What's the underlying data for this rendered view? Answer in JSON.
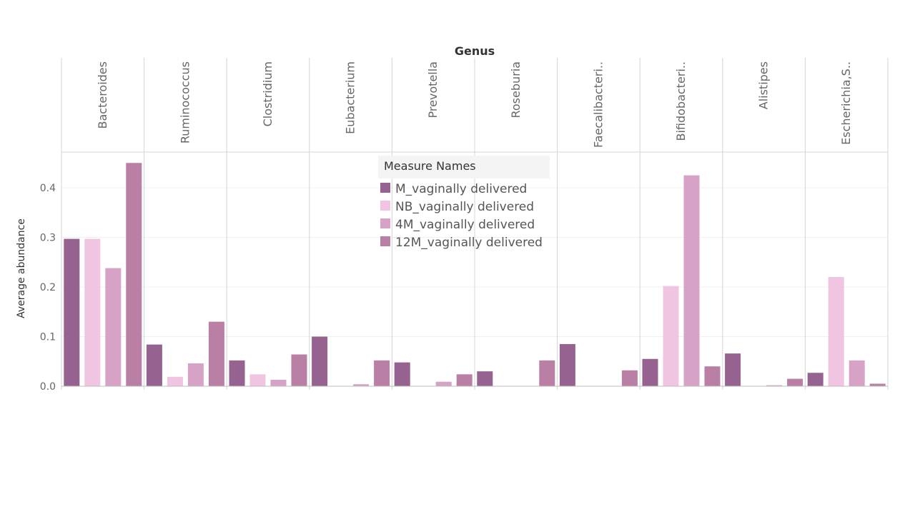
{
  "chart_data": {
    "type": "bar",
    "title": "",
    "column_header": "Genus",
    "ylabel": "Average abundance",
    "ylim": [
      0,
      0.45
    ],
    "yticks": [
      "0.0",
      "0.1",
      "0.2",
      "0.3",
      "0.4"
    ],
    "ytick_values": [
      0,
      0.1,
      0.2,
      0.3,
      0.4
    ],
    "grid": true,
    "legend_placement": "top-center",
    "legend_title": "Measure Names",
    "categories": [
      "Bacteroides",
      "Ruminococcus",
      "Clostridium",
      "Eubacterium",
      "Prevotella",
      "Roseburia",
      "Faecalibacteri..",
      "Bifidobacteri..",
      "Alistipes",
      "Escherichia,S.."
    ],
    "series": [
      {
        "name": "M_vaginally delivered",
        "color": "#966391",
        "values": [
          0.297,
          0.084,
          0.052,
          0.1,
          0.048,
          0.03,
          0.085,
          0.055,
          0.066,
          0.027
        ]
      },
      {
        "name": "NB_vaginally delivered",
        "color": "#efc5e2",
        "values": [
          0.297,
          0.019,
          0.024,
          0,
          0,
          0,
          0,
          0.202,
          0,
          0.22
        ]
      },
      {
        "name": "4M_vaginally delivered",
        "color": "#d6a2c6",
        "values": [
          0.238,
          0.046,
          0.013,
          0.004,
          0.009,
          0,
          0,
          0.425,
          0.002,
          0.052
        ]
      },
      {
        "name": "12M_vaginally delivered",
        "color": "#b97fa4",
        "values": [
          0.45,
          0.13,
          0.064,
          0.052,
          0.024,
          0.052,
          0.032,
          0.04,
          0.015,
          0.005
        ]
      }
    ]
  }
}
